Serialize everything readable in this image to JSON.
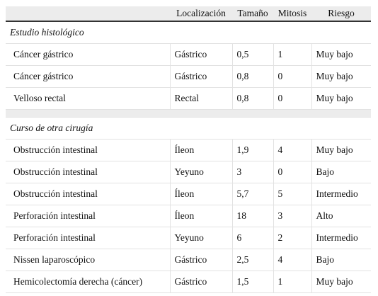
{
  "table": {
    "columns": [
      "Localización",
      "Tamaño",
      "Mitosis",
      "Riesgo"
    ],
    "sections": [
      {
        "title": "Estudio histológico",
        "rows": [
          [
            "Cáncer gástrico",
            "Gástrico",
            "0,5",
            "1",
            "Muy bajo"
          ],
          [
            "Cáncer gástrico",
            "Gástrico",
            "0,8",
            "0",
            "Muy bajo"
          ],
          [
            "Velloso rectal",
            "Rectal",
            "0,8",
            "0",
            "Muy bajo"
          ]
        ]
      },
      {
        "title": "Curso de otra cirugía",
        "rows": [
          [
            "Obstrucción intestinal",
            "Íleon",
            "1,9",
            "4",
            "Muy bajo"
          ],
          [
            "Obstrucción intestinal",
            "Yeyuno",
            "3",
            "0",
            "Bajo"
          ],
          [
            "Obstrucción intestinal",
            "Íleon",
            "5,7",
            "5",
            "Intermedio"
          ],
          [
            "Perforación intestinal",
            "Íleon",
            "18",
            "3",
            "Alto"
          ],
          [
            "Perforación intestinal",
            "Yeyuno",
            "6",
            "2",
            "Intermedio"
          ],
          [
            "Nissen laparoscópico",
            "Gástrico",
            "2,5",
            "4",
            "Bajo"
          ],
          [
            "Hemicolectomía derecha (cáncer)",
            "Gástrico",
            "1,5",
            "1",
            "Muy bajo"
          ]
        ]
      }
    ]
  }
}
